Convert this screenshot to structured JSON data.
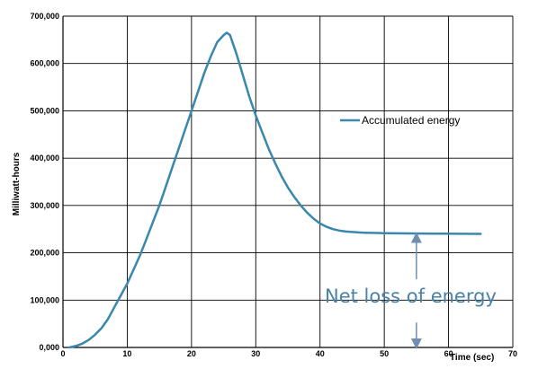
{
  "chart_data": {
    "type": "line",
    "title": "",
    "xlabel": "Time (sec)",
    "ylabel": "Milliwatt-hours",
    "xlim": [
      0,
      70
    ],
    "ylim": [
      0,
      700000
    ],
    "x_ticks": [
      0,
      10,
      20,
      30,
      40,
      50,
      60,
      70
    ],
    "x_tick_labels": [
      "0",
      "10",
      "20",
      "30",
      "40",
      "50",
      "60",
      "70"
    ],
    "y_ticks": [
      0,
      100000,
      200000,
      300000,
      400000,
      500000,
      600000,
      700000
    ],
    "y_tick_labels": [
      "0,000",
      "100,000",
      "200,000",
      "300,000",
      "400,000",
      "500,000",
      "600,000",
      "700,000"
    ],
    "grid": true,
    "legend_position": "right",
    "series": [
      {
        "name": "Accumulated energy",
        "color": "#3a87ae",
        "x": [
          1,
          2,
          3,
          4,
          5,
          6,
          7,
          8,
          9,
          10,
          11,
          12,
          13,
          14,
          15,
          16,
          17,
          18,
          19,
          20,
          21,
          22,
          23,
          24,
          25,
          25.5,
          26,
          27,
          28,
          29,
          30,
          31,
          32,
          33,
          34,
          35,
          36,
          37,
          38,
          39,
          40,
          41,
          42,
          43,
          44,
          45,
          46,
          47,
          48,
          49,
          50,
          52,
          54,
          56,
          58,
          60,
          62,
          65
        ],
        "y": [
          0,
          3000,
          8000,
          16000,
          27000,
          41000,
          60000,
          85000,
          110000,
          135000,
          165000,
          195000,
          230000,
          265000,
          300000,
          340000,
          380000,
          420000,
          460000,
          500000,
          540000,
          580000,
          615000,
          645000,
          660000,
          665000,
          660000,
          620000,
          575000,
          530000,
          490000,
          455000,
          420000,
          390000,
          362000,
          338000,
          318000,
          300000,
          285000,
          272000,
          262000,
          255000,
          250000,
          247000,
          245000,
          244000,
          243000,
          242500,
          242000,
          241800,
          241500,
          241200,
          241000,
          240800,
          240600,
          240400,
          240200,
          240000
        ]
      }
    ],
    "annotations": {
      "text": "Net loss of energy",
      "color": "#4a82a8",
      "arrow_x": 55,
      "arrow_top": 240000,
      "arrow_bottom": 0
    }
  }
}
